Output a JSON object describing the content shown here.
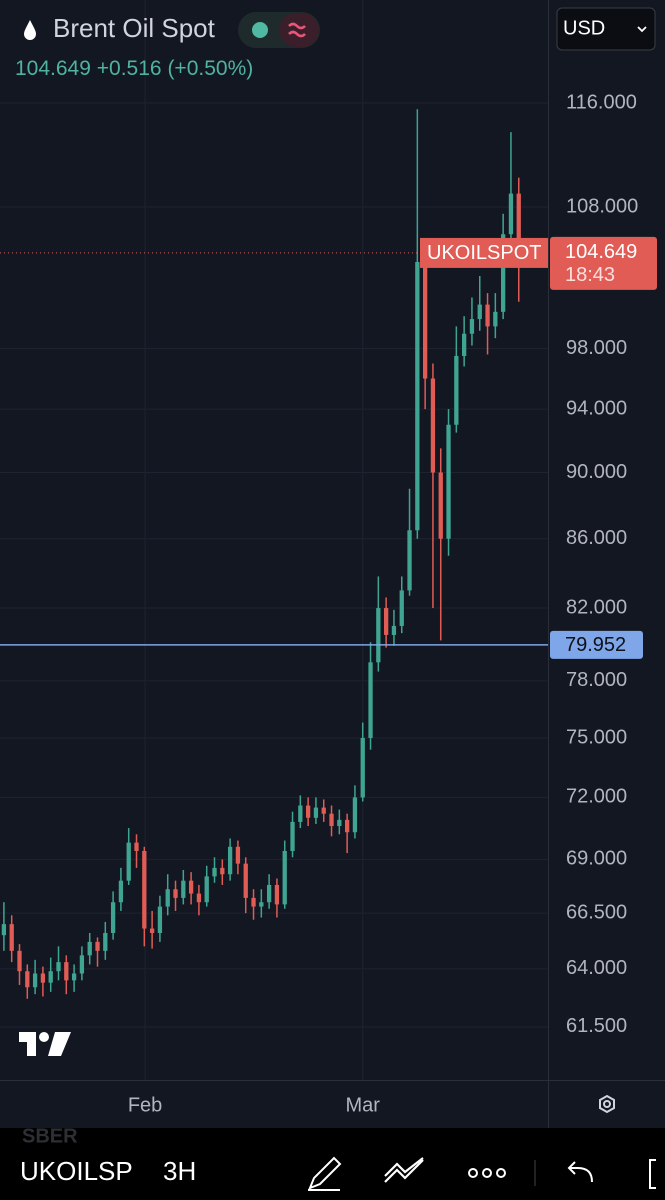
{
  "ui": {
    "title": "Brent Oil Spot",
    "change": "+0.516",
    "change_pct": "(+0.50%)",
    "currency": "USD",
    "price_tag": "UKOILSPOT",
    "countdown": "18:43",
    "symbol": "UKOILSP",
    "interval": "3H",
    "ghost_symbol": "SBER"
  },
  "chart_data": {
    "type": "candlestick",
    "log_scale": true,
    "grid": true,
    "up_color": "#3fa592",
    "down_color": "#e05c55",
    "xlim": [
      -0.5,
      69.75
    ],
    "ylim": [
      59.3,
      124.5
    ],
    "xticks": [
      {
        "value": 18.1,
        "label": "Feb"
      },
      {
        "value": 46.0,
        "label": "Mar"
      }
    ],
    "yticks": [
      {
        "value": 61.5,
        "label": "61.500"
      },
      {
        "value": 64,
        "label": "64.000"
      },
      {
        "value": 66.5,
        "label": "66.500"
      },
      {
        "value": 69,
        "label": "69.000"
      },
      {
        "value": 72,
        "label": "72.000"
      },
      {
        "value": 75,
        "label": "75.000"
      },
      {
        "value": 78,
        "label": "78.000"
      },
      {
        "value": 82,
        "label": "82.000"
      },
      {
        "value": 86,
        "label": "86.000"
      },
      {
        "value": 90,
        "label": "90.000"
      },
      {
        "value": 94,
        "label": "94.000"
      },
      {
        "value": 98,
        "label": "98.000"
      },
      {
        "value": 108,
        "label": "108.000"
      },
      {
        "value": 116,
        "label": "116.000"
      }
    ],
    "last_price": 104.649,
    "last_price_color": "#e05c55",
    "hline": 79.952,
    "hline_color": "#7fa6e8",
    "candles": [
      [
        65.5,
        67.0,
        64.8,
        66.0
      ],
      [
        66.0,
        66.4,
        64.3,
        64.8
      ],
      [
        64.8,
        65.1,
        63.3,
        63.9
      ],
      [
        63.9,
        64.2,
        62.7,
        63.2
      ],
      [
        63.2,
        64.4,
        62.9,
        63.8
      ],
      [
        63.8,
        64.1,
        62.8,
        63.4
      ],
      [
        63.4,
        64.5,
        63.0,
        63.9
      ],
      [
        63.9,
        65.0,
        63.5,
        64.3
      ],
      [
        64.3,
        64.6,
        62.9,
        63.5
      ],
      [
        63.5,
        64.2,
        63.0,
        63.8
      ],
      [
        63.8,
        65.0,
        63.5,
        64.6
      ],
      [
        64.6,
        65.6,
        64.2,
        65.2
      ],
      [
        65.2,
        65.4,
        64.1,
        64.8
      ],
      [
        64.8,
        66.1,
        64.4,
        65.6
      ],
      [
        65.6,
        67.5,
        65.3,
        67.0
      ],
      [
        67.0,
        68.6,
        66.6,
        68.0
      ],
      [
        68.0,
        70.5,
        67.8,
        69.8
      ],
      [
        69.8,
        70.2,
        68.6,
        69.4
      ],
      [
        69.4,
        69.6,
        65.0,
        65.8
      ],
      [
        65.8,
        66.6,
        64.9,
        65.6
      ],
      [
        65.6,
        67.3,
        65.2,
        66.8
      ],
      [
        66.8,
        68.3,
        66.4,
        67.6
      ],
      [
        67.6,
        68.0,
        66.6,
        67.2
      ],
      [
        67.2,
        68.5,
        66.9,
        68.0
      ],
      [
        68.0,
        68.4,
        66.9,
        67.4
      ],
      [
        67.4,
        67.8,
        66.4,
        67.0
      ],
      [
        67.0,
        68.7,
        66.8,
        68.2
      ],
      [
        68.2,
        69.1,
        67.9,
        68.6
      ],
      [
        68.6,
        69.0,
        67.8,
        68.3
      ],
      [
        68.3,
        70.0,
        68.0,
        69.6
      ],
      [
        69.6,
        69.9,
        68.3,
        68.8
      ],
      [
        68.8,
        69.1,
        66.5,
        67.2
      ],
      [
        67.2,
        67.6,
        66.2,
        66.8
      ],
      [
        66.8,
        67.6,
        66.3,
        67.0
      ],
      [
        67.0,
        68.3,
        66.7,
        67.8
      ],
      [
        67.8,
        68.1,
        66.3,
        66.9
      ],
      [
        66.9,
        69.9,
        66.7,
        69.4
      ],
      [
        69.4,
        71.3,
        69.1,
        70.8
      ],
      [
        70.8,
        72.1,
        70.5,
        71.6
      ],
      [
        71.6,
        72.0,
        70.6,
        71.0
      ],
      [
        71.0,
        72.0,
        70.7,
        71.5
      ],
      [
        71.5,
        71.9,
        70.8,
        71.2
      ],
      [
        71.2,
        71.6,
        70.1,
        70.6
      ],
      [
        70.6,
        71.4,
        70.2,
        70.9
      ],
      [
        70.9,
        71.2,
        69.3,
        70.3
      ],
      [
        70.3,
        72.6,
        70.0,
        72.0
      ],
      [
        72.0,
        75.8,
        71.8,
        75.0
      ],
      [
        75.0,
        80.1,
        74.4,
        79.0
      ],
      [
        79.0,
        83.8,
        78.5,
        82.0
      ],
      [
        82.0,
        82.6,
        79.8,
        80.5
      ],
      [
        80.5,
        81.9,
        79.9,
        81.0
      ],
      [
        81.0,
        83.8,
        80.6,
        83.0
      ],
      [
        83.0,
        89.0,
        82.7,
        86.5
      ],
      [
        86.5,
        115.5,
        86.0,
        104.0
      ],
      [
        104.0,
        105.5,
        94.0,
        96.0
      ],
      [
        96.0,
        97.0,
        82.0,
        90.0
      ],
      [
        90.0,
        91.5,
        80.2,
        86.0
      ],
      [
        86.0,
        94.0,
        85.0,
        93.0
      ],
      [
        93.0,
        99.5,
        92.5,
        97.5
      ],
      [
        97.5,
        100.2,
        96.8,
        99.0
      ],
      [
        99.0,
        101.5,
        98.2,
        100.0
      ],
      [
        100.0,
        103.0,
        99.2,
        101.0
      ],
      [
        101.0,
        101.8,
        97.6,
        99.5
      ],
      [
        99.5,
        101.8,
        98.7,
        100.5
      ],
      [
        100.5,
        107.5,
        100.0,
        106.0
      ],
      [
        106.0,
        113.7,
        104.8,
        109.0
      ],
      [
        109.0,
        110.2,
        101.2,
        104.649
      ]
    ]
  }
}
